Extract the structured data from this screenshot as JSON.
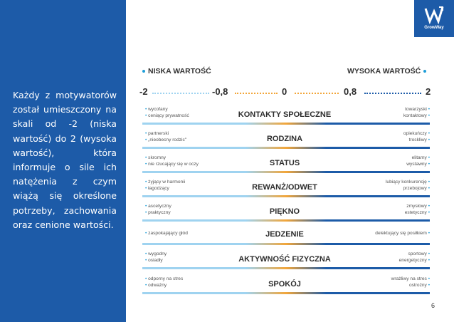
{
  "sidebar": {
    "text": "Każdy z motywatorów został umieszczony na skali od -2 (niska wartość) do 2 (wysoka wartość), która informuje o sile ich natężenia z czym wiążą się określone potrzeby, zachowania oraz cenione wartości."
  },
  "logo": {
    "name": "GrowWay"
  },
  "header": {
    "low": "NISKA WARTOŚĆ",
    "high": "WYSOKA WARTOŚĆ"
  },
  "scale": [
    "-2",
    "-0,8",
    "0",
    "0,8",
    "2"
  ],
  "rows": [
    {
      "title": "KONTAKTY SPOŁECZNE",
      "left": [
        "wycofany",
        "ceniący prywatność"
      ],
      "right": [
        "towarzyski",
        "kontaktowy"
      ]
    },
    {
      "title": "RODZINA",
      "left": [
        "partnerski",
        "„nieobecny rodzic\""
      ],
      "right": [
        "opiekuńczy",
        "troskliwy"
      ]
    },
    {
      "title": "STATUS",
      "left": [
        "skromny",
        "nie rzucający się w oczy"
      ],
      "right": [
        "elitarny",
        "wystawny"
      ]
    },
    {
      "title": "REWANŻ/ODWET",
      "left": [
        "żyjący w harmonii",
        "łagodzący"
      ],
      "right": [
        "lubiący konkurencję",
        "przebojowy"
      ]
    },
    {
      "title": "PIĘKNO",
      "left": [
        "ascetyczny",
        "praktyczny"
      ],
      "right": [
        "zmysłowy",
        "estetyczny"
      ]
    },
    {
      "title": "JEDZENIE",
      "left": [
        "zaspokajający głód"
      ],
      "right": [
        "delektujący się posiłkiem"
      ]
    },
    {
      "title": "AKTYWNOŚĆ FIZYCZNA",
      "left": [
        "wygodny",
        "osiadły"
      ],
      "right": [
        "sportowy",
        "energetyczny"
      ]
    },
    {
      "title": "SPOKÓJ",
      "left": [
        "odporny na stres",
        "odważny"
      ],
      "right": [
        "wrażliwy na stres",
        "ostrożny"
      ]
    }
  ],
  "page_number": "6",
  "colors": {
    "sidebar": "#1d5ba8",
    "accent_light": "#9fd3f0",
    "accent_mid": "#f2a63a",
    "accent_dark": "#1c5ba8"
  }
}
